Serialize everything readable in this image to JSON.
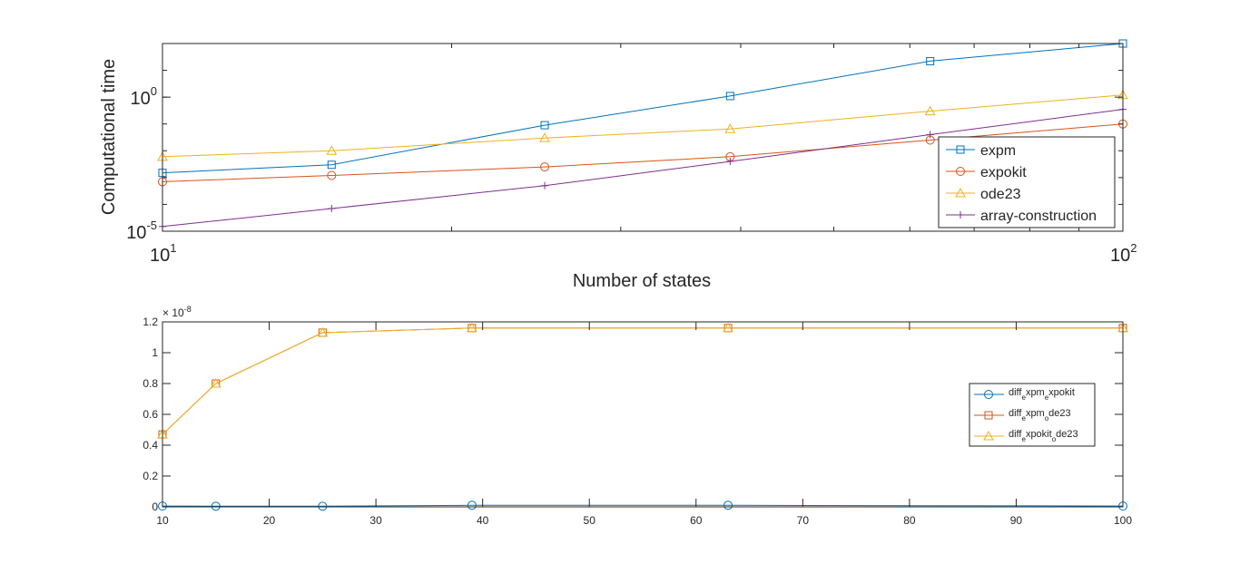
{
  "chart_data": [
    {
      "type": "line",
      "xlabel": "Number of states",
      "ylabel": "Computational time",
      "xscale": "log",
      "yscale": "log",
      "xlim": [
        10,
        100
      ],
      "ylim": [
        1e-05,
        100
      ],
      "x_ticks": [
        {
          "base": "10",
          "exp": "1"
        },
        {
          "base": "10",
          "exp": "2"
        }
      ],
      "y_ticks": [
        {
          "base": "10",
          "exp": "-5"
        },
        {
          "base": "10",
          "exp": "0"
        }
      ],
      "grid": false,
      "legend_position": "bottom-right",
      "x": [
        10,
        15,
        25,
        39,
        63,
        100
      ],
      "series": [
        {
          "name": "expm",
          "color": "#0072BD",
          "marker": "square",
          "values": [
            0.0015,
            0.003,
            0.09,
            1.1,
            22,
            100
          ]
        },
        {
          "name": "expokit",
          "color": "#D95319",
          "marker": "circle",
          "values": [
            0.0007,
            0.0012,
            0.0025,
            0.006,
            0.025,
            0.1
          ]
        },
        {
          "name": "ode23",
          "color": "#EDB120",
          "marker": "triangle",
          "values": [
            0.006,
            0.01,
            0.03,
            0.065,
            0.3,
            1.2
          ]
        },
        {
          "name": "array-construction",
          "color": "#7E2F8E",
          "marker": "plus",
          "values": [
            1.5e-05,
            7e-05,
            0.0005,
            0.004,
            0.04,
            0.35
          ]
        }
      ]
    },
    {
      "type": "line",
      "xlabel": "",
      "ylabel": "",
      "xlim": [
        10,
        100
      ],
      "ylim": [
        0,
        1.2
      ],
      "y_exponent_label": {
        "base": "× 10",
        "exp": "-8"
      },
      "x_ticks": [
        "10",
        "20",
        "30",
        "40",
        "50",
        "60",
        "70",
        "80",
        "90",
        "100"
      ],
      "y_ticks": [
        "0",
        "0.2",
        "0.4",
        "0.6",
        "0.8",
        "1",
        "1.2"
      ],
      "grid": false,
      "legend_position": "right",
      "x": [
        10,
        15,
        25,
        39,
        63,
        100
      ],
      "series": [
        {
          "legend": {
            "a": "diff",
            "b": "e",
            "c": "xpm",
            "d": "e",
            "e": "xpokit"
          },
          "color": "#0072BD",
          "marker": "circle",
          "values": [
            0.005,
            0.004,
            0.004,
            0.01,
            0.01,
            0.005
          ]
        },
        {
          "legend": {
            "a": "diff",
            "b": "e",
            "c": "xpm",
            "d": "o",
            "e": "de23"
          },
          "color": "#D95319",
          "marker": "square",
          "values": [
            0.47,
            0.8,
            1.13,
            1.16,
            1.16,
            1.16
          ]
        },
        {
          "legend": {
            "a": "diff",
            "b": "e",
            "c": "xpokit",
            "d": "o",
            "e": "de23"
          },
          "color": "#EDB120",
          "marker": "triangle",
          "values": [
            0.47,
            0.8,
            1.13,
            1.16,
            1.16,
            1.16
          ]
        }
      ]
    }
  ]
}
